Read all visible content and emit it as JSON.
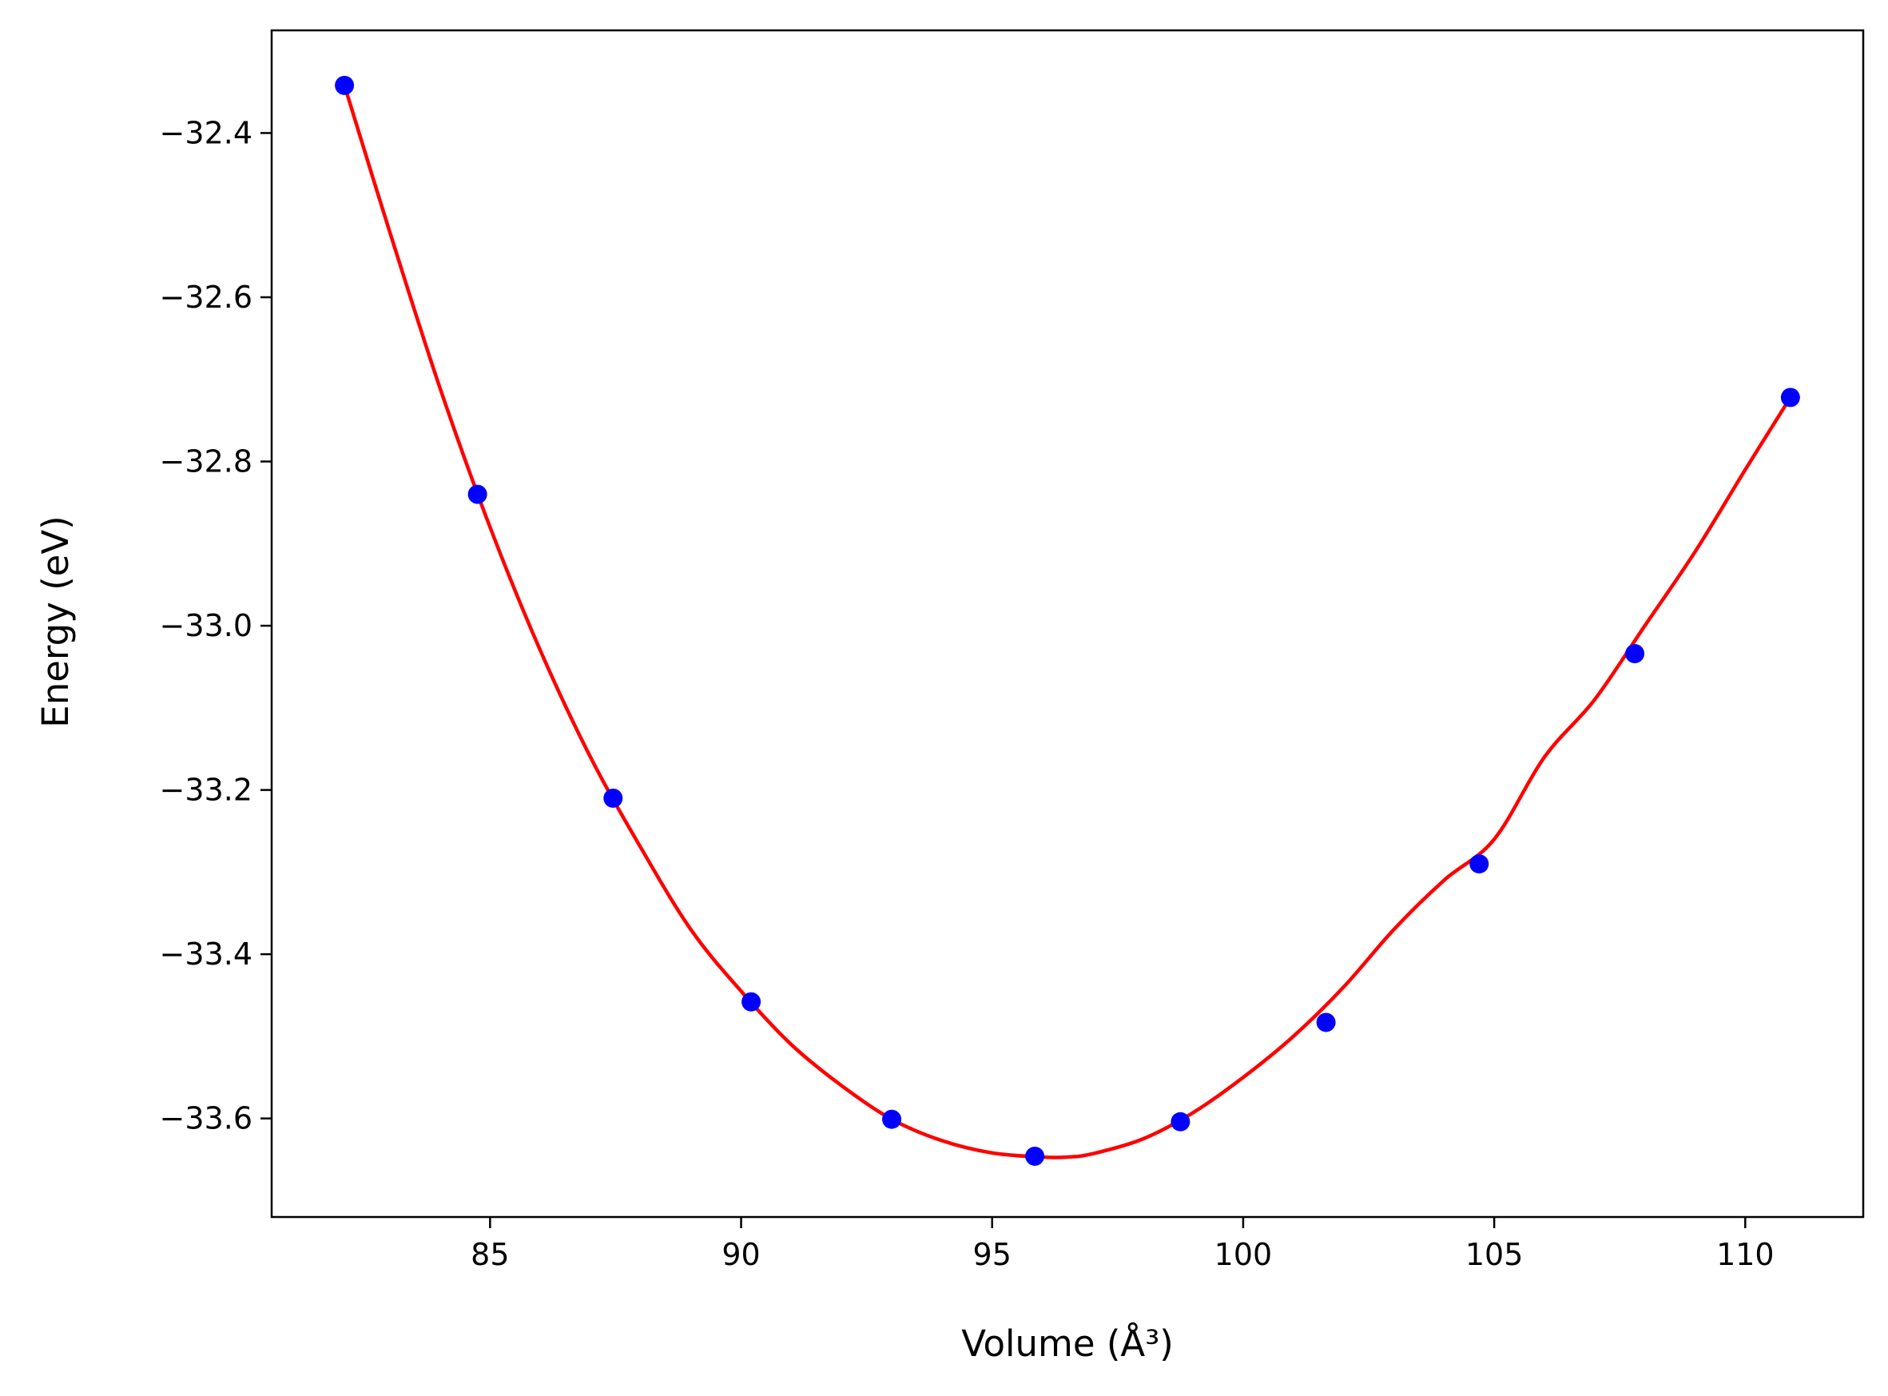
{
  "chart_data": {
    "type": "scatter",
    "title": "",
    "xlabel": "Volume (Å³)",
    "ylabel": "Energy (eV)",
    "xlim": [
      80.65,
      112.35
    ],
    "ylim": [
      -33.72,
      -32.275
    ],
    "xticks": [
      85,
      90,
      95,
      100,
      105,
      110
    ],
    "yticks": [
      -32.4,
      -32.6,
      -32.8,
      -33.0,
      -33.2,
      -33.4,
      -33.6
    ],
    "grid": false,
    "legend": "none",
    "series": [
      {
        "kind": "points",
        "color": "#0000ff",
        "x": [
          82.1,
          84.75,
          87.45,
          90.2,
          93.0,
          95.85,
          98.75,
          101.65,
          104.7,
          107.8,
          110.9
        ],
        "y": [
          -32.342,
          -32.84,
          -33.21,
          -33.458,
          -33.601,
          -33.646,
          -33.604,
          -33.483,
          -33.29,
          -33.034,
          -32.722
        ]
      },
      {
        "kind": "fit-curve",
        "color": "#ff0000",
        "x": [
          82.1,
          83.0,
          84.0,
          85.0,
          86.0,
          87.0,
          88.0,
          89.0,
          90.0,
          91.0,
          92.0,
          93.0,
          94.0,
          95.0,
          96.0,
          96.5,
          97.0,
          98.0,
          99.0,
          100.0,
          101.0,
          102.0,
          103.0,
          104.0,
          105.0,
          106.0,
          107.0,
          108.0,
          109.0,
          110.0,
          110.9
        ],
        "y": [
          -32.342,
          -32.52,
          -32.71,
          -32.88,
          -33.03,
          -33.16,
          -33.27,
          -33.37,
          -33.445,
          -33.51,
          -33.56,
          -33.601,
          -33.627,
          -33.642,
          -33.647,
          -33.647,
          -33.643,
          -33.625,
          -33.593,
          -33.55,
          -33.5,
          -33.44,
          -33.37,
          -33.31,
          -33.26,
          -33.16,
          -33.09,
          -33.0,
          -32.91,
          -32.81,
          -32.722
        ]
      }
    ]
  }
}
